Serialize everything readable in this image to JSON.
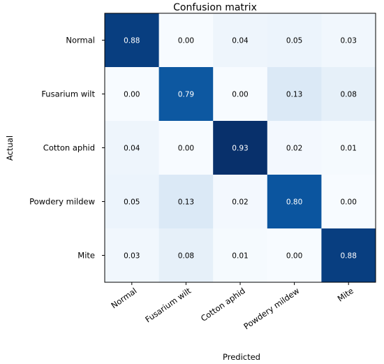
{
  "chart_data": {
    "type": "heatmap",
    "title": "Confusion matrix",
    "xlabel": "Predicted",
    "ylabel": "Actual",
    "x_categories": [
      "Normal",
      "Fusarium wilt",
      "Cotton aphid",
      "Powdery mildew",
      "Mite"
    ],
    "y_categories": [
      "Normal",
      "Fusarium wilt",
      "Cotton aphid",
      "Powdery mildew",
      "Mite"
    ],
    "values": [
      [
        0.88,
        0.0,
        0.04,
        0.05,
        0.03
      ],
      [
        0.0,
        0.79,
        0.0,
        0.13,
        0.08
      ],
      [
        0.04,
        0.0,
        0.93,
        0.02,
        0.01
      ],
      [
        0.05,
        0.13,
        0.02,
        0.8,
        0.0
      ],
      [
        0.03,
        0.08,
        0.01,
        0.0,
        0.88
      ]
    ],
    "value_range": [
      0,
      0.93
    ],
    "colormap": "Blues",
    "colors": {
      "low": "#f7fbff",
      "high": "#08306b",
      "frame": "#000000",
      "light_text": "#ffffff",
      "dark_text": "#000000"
    }
  }
}
